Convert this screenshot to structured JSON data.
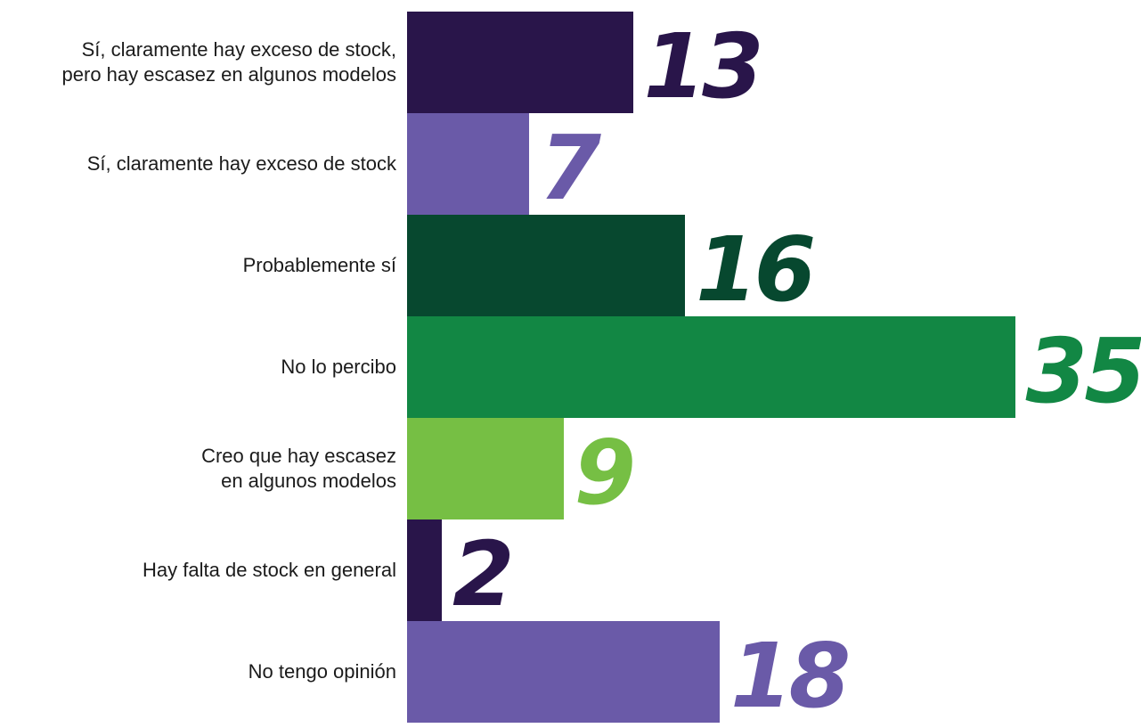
{
  "chart_data": {
    "type": "bar",
    "orientation": "horizontal",
    "categories": [
      "Sí, claramente hay exceso de stock,\npero hay escasez en algunos modelos",
      "Sí, claramente hay exceso de stock",
      "Probablemente sí",
      "No lo percibo",
      "Creo que hay escasez\nen algunos modelos",
      "Hay falta de stock en general",
      "No tengo opinión"
    ],
    "values": [
      13,
      7,
      16,
      35,
      9,
      2,
      18
    ],
    "colors": [
      "#29154a",
      "#6a5aa8",
      "#07482f",
      "#128744",
      "#76bf44",
      "#29154a",
      "#6a5aa8"
    ],
    "data_labels": [
      "13",
      "7",
      "16",
      "35",
      "9",
      "2",
      "18"
    ],
    "title": "",
    "xlabel": "",
    "ylabel": "",
    "xlim": [
      0,
      35
    ],
    "grid": false,
    "legend": "none"
  }
}
